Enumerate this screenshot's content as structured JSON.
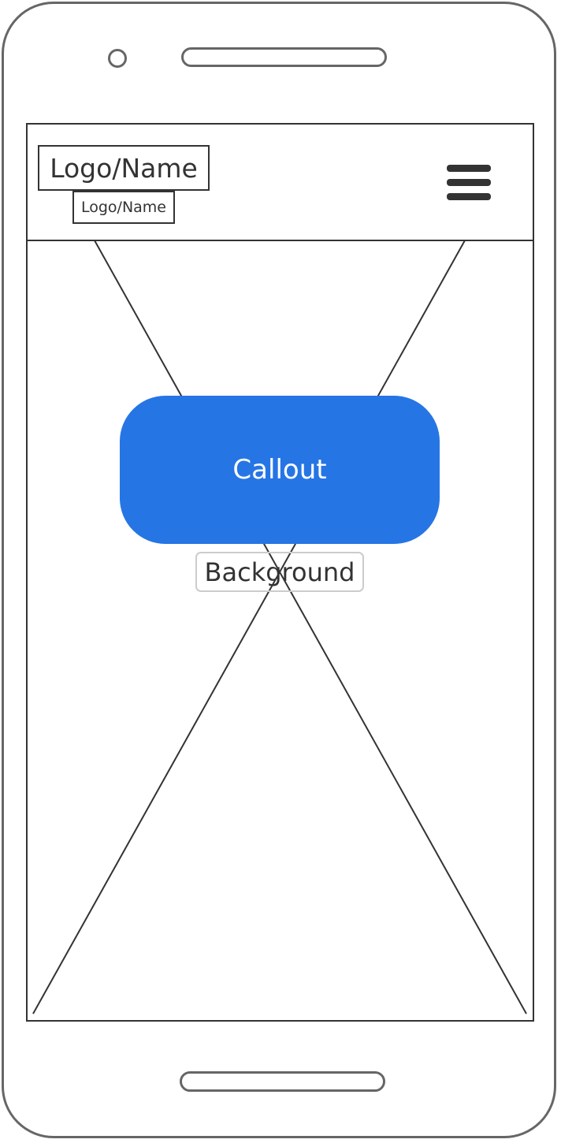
{
  "header": {
    "logo_label": "Logo/Name",
    "logo_sub_label": "Logo/Name",
    "menu_icon": "hamburger-menu-icon"
  },
  "hero": {
    "callout_label": "Callout",
    "background_label": "Background"
  },
  "colors": {
    "callout": "#2675e5",
    "frame": "#666666",
    "lines": "#333333"
  }
}
